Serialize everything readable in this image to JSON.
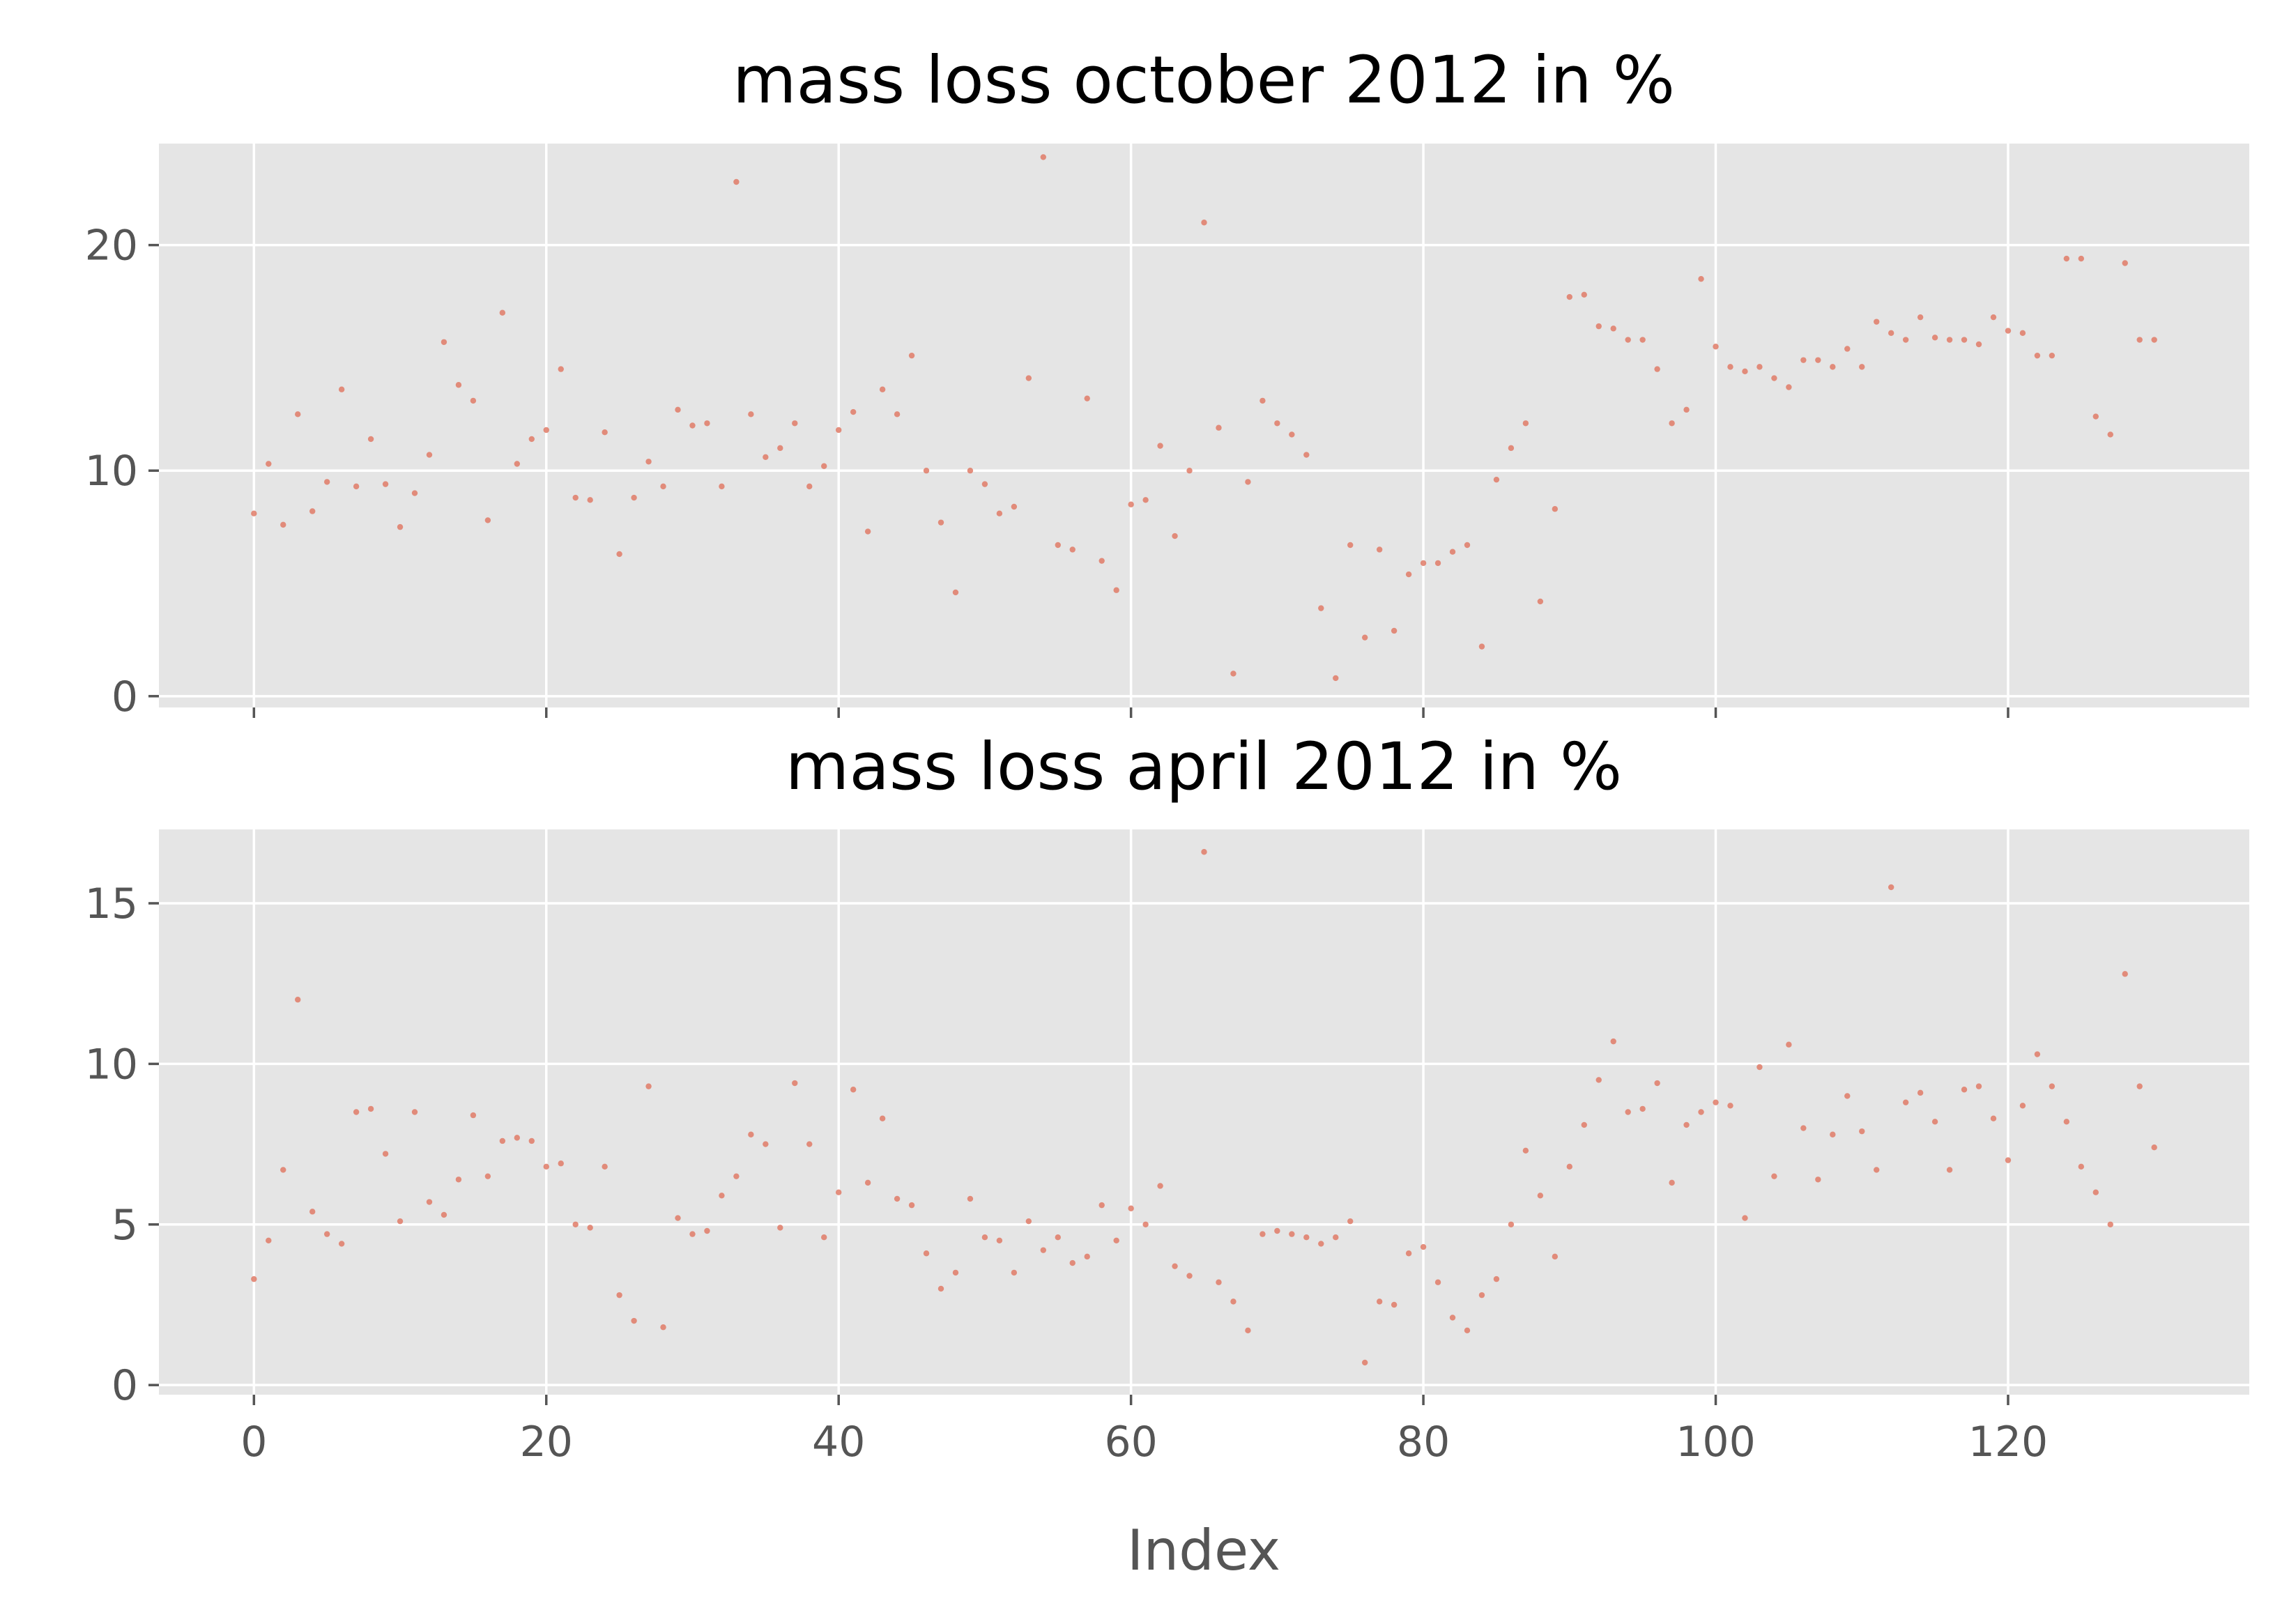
{
  "chart_data": [
    {
      "type": "scatter",
      "title": "mass loss october 2012 in %",
      "xlabel": "",
      "ylabel": "",
      "xlim": [
        -6.5,
        136.5
      ],
      "ylim": [
        -0.5,
        24.5
      ],
      "xticks": [
        0,
        20,
        40,
        60,
        80,
        100,
        120
      ],
      "xtick_labels_visible": false,
      "yticks": [
        0,
        10,
        20
      ],
      "grid": true,
      "point_color": "#e07b67",
      "background": "#e5e5e5",
      "x": [
        0,
        1,
        2,
        3,
        4,
        5,
        6,
        7,
        8,
        9,
        10,
        11,
        12,
        13,
        14,
        15,
        16,
        17,
        18,
        19,
        20,
        21,
        22,
        23,
        24,
        25,
        26,
        27,
        28,
        29,
        30,
        31,
        32,
        33,
        34,
        35,
        36,
        37,
        38,
        39,
        40,
        41,
        42,
        43,
        44,
        45,
        46,
        47,
        48,
        49,
        50,
        51,
        52,
        53,
        54,
        55,
        56,
        57,
        58,
        59,
        60,
        61,
        62,
        63,
        64,
        65,
        66,
        67,
        68,
        69,
        70,
        71,
        72,
        73,
        74,
        75,
        76,
        77,
        78,
        79,
        80,
        81,
        82,
        83,
        84,
        85,
        86,
        87,
        88,
        89,
        90,
        91,
        92,
        93,
        94,
        95,
        96,
        97,
        98,
        99,
        100,
        101,
        102,
        103,
        104,
        105,
        106,
        107,
        108,
        109,
        110,
        111,
        112,
        113,
        114,
        115,
        116,
        117,
        118,
        119,
        120,
        121,
        122,
        123,
        124,
        125,
        126,
        127,
        128,
        129,
        130
      ],
      "y": [
        8.1,
        10.3,
        7.6,
        12.5,
        8.2,
        9.5,
        13.6,
        9.3,
        11.4,
        9.4,
        7.5,
        9.0,
        10.7,
        15.7,
        13.8,
        13.1,
        7.8,
        17.0,
        10.3,
        11.4,
        11.8,
        14.5,
        8.8,
        8.7,
        11.7,
        6.3,
        8.8,
        10.4,
        9.3,
        12.7,
        12.0,
        12.1,
        9.3,
        22.8,
        12.5,
        10.6,
        11.0,
        12.1,
        9.3,
        10.2,
        11.8,
        12.6,
        7.3,
        13.6,
        12.5,
        15.1,
        10.0,
        7.7,
        4.6,
        10.0,
        9.4,
        8.1,
        8.4,
        14.1,
        23.9,
        6.7,
        6.5,
        13.2,
        6.0,
        4.7,
        8.5,
        8.7,
        11.1,
        7.1,
        10.0,
        21.0,
        11.9,
        1.0,
        9.5,
        13.1,
        12.1,
        11.6,
        10.7,
        3.9,
        0.8,
        6.7,
        2.6,
        6.5,
        2.9,
        5.4,
        5.9,
        5.9,
        6.4,
        6.7,
        2.2,
        9.6,
        11.0,
        12.1,
        4.2,
        8.3,
        17.7,
        17.8,
        16.4,
        16.3,
        15.8,
        15.8,
        14.5,
        12.1,
        12.7,
        18.5,
        15.5,
        14.6,
        14.4,
        14.6,
        14.1,
        13.7,
        14.9,
        14.9,
        14.6,
        15.4,
        14.6,
        16.6,
        16.1,
        15.8,
        16.8,
        15.9,
        15.8,
        15.8,
        15.6,
        16.8,
        16.2,
        16.1,
        15.1,
        15.1,
        19.4,
        19.4,
        12.4,
        11.6,
        19.2,
        15.8,
        15.8
      ]
    },
    {
      "type": "scatter",
      "title": "mass loss april 2012 in %",
      "xlabel": "Index",
      "ylabel": "",
      "xlim": [
        -6.5,
        136.5
      ],
      "ylim": [
        -0.3,
        17.3
      ],
      "xticks": [
        0,
        20,
        40,
        60,
        80,
        100,
        120
      ],
      "xtick_labels": [
        "0",
        "20",
        "40",
        "60",
        "80",
        "100",
        "120"
      ],
      "yticks": [
        0,
        5,
        10,
        15
      ],
      "grid": true,
      "point_color": "#e07b67",
      "background": "#e5e5e5",
      "x": [
        0,
        1,
        2,
        3,
        4,
        5,
        6,
        7,
        8,
        9,
        10,
        11,
        12,
        13,
        14,
        15,
        16,
        17,
        18,
        19,
        20,
        21,
        22,
        23,
        24,
        25,
        26,
        27,
        28,
        29,
        30,
        31,
        32,
        33,
        34,
        35,
        36,
        37,
        38,
        39,
        40,
        41,
        42,
        43,
        44,
        45,
        46,
        47,
        48,
        49,
        50,
        51,
        52,
        53,
        54,
        55,
        56,
        57,
        58,
        59,
        60,
        61,
        62,
        63,
        64,
        65,
        66,
        67,
        68,
        69,
        70,
        71,
        72,
        73,
        74,
        75,
        76,
        77,
        78,
        79,
        80,
        81,
        82,
        83,
        84,
        85,
        86,
        87,
        88,
        89,
        90,
        91,
        92,
        93,
        94,
        95,
        96,
        97,
        98,
        99,
        100,
        101,
        102,
        103,
        104,
        105,
        106,
        107,
        108,
        109,
        110,
        111,
        112,
        113,
        114,
        115,
        116,
        117,
        118,
        119,
        120,
        121,
        122,
        123,
        124,
        125,
        126,
        127,
        128,
        129,
        130
      ],
      "y": [
        3.3,
        4.5,
        6.7,
        12.0,
        5.4,
        4.7,
        4.4,
        8.5,
        8.6,
        7.2,
        5.1,
        8.5,
        5.7,
        5.3,
        6.4,
        8.4,
        6.5,
        7.6,
        7.7,
        7.6,
        6.8,
        6.9,
        5.0,
        4.9,
        6.8,
        2.8,
        2.0,
        9.3,
        1.8,
        5.2,
        4.7,
        4.8,
        5.9,
        6.5,
        7.8,
        7.5,
        4.9,
        9.4,
        7.5,
        4.6,
        6.0,
        9.2,
        6.3,
        8.3,
        5.8,
        5.6,
        4.1,
        3.0,
        3.5,
        5.8,
        4.6,
        4.5,
        3.5,
        5.1,
        4.2,
        4.6,
        3.8,
        4.0,
        5.6,
        4.5,
        5.5,
        5.0,
        6.2,
        3.7,
        3.4,
        16.6,
        3.2,
        2.6,
        1.7,
        4.7,
        4.8,
        4.7,
        4.6,
        4.4,
        4.6,
        5.1,
        0.7,
        2.6,
        2.5,
        4.1,
        4.3,
        3.2,
        2.1,
        1.7,
        2.8,
        3.3,
        5.0,
        7.3,
        5.9,
        4.0,
        6.8,
        8.1,
        9.5,
        10.7,
        8.5,
        8.6,
        9.4,
        6.3,
        8.1,
        8.5,
        8.8,
        8.7,
        5.2,
        9.9,
        6.5,
        10.6,
        8.0,
        6.4,
        7.8,
        9.0,
        7.9,
        6.7,
        15.5,
        8.8,
        9.1,
        8.2,
        6.7,
        9.2,
        9.3,
        8.3,
        7.0,
        8.7,
        10.3,
        9.3,
        8.2,
        6.8,
        6.0,
        5.0,
        12.8,
        9.3,
        7.4
      ]
    }
  ]
}
